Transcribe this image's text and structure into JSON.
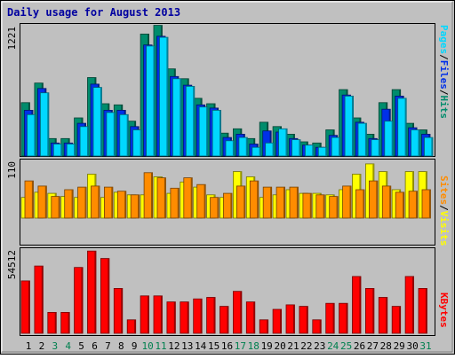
{
  "chart_data": {
    "type": "bar",
    "title": "Daily usage for August 2013",
    "colors": {
      "hits": "#00d8ff",
      "files": "#0030e8",
      "pages": "#008c6c",
      "visits": "#ffff00",
      "sites": "#ff8c00",
      "kbytes": "#ff0000",
      "weekend_day_label": "#00804f",
      "weekday_label": "#000000",
      "title": "#0000a0"
    },
    "x": {
      "labels": [
        "1",
        "2",
        "3",
        "4",
        "5",
        "6",
        "7",
        "8",
        "9",
        "10",
        "11",
        "12",
        "13",
        "14",
        "15",
        "16",
        "17",
        "18",
        "19",
        "20",
        "21",
        "22",
        "23",
        "24",
        "25",
        "26",
        "27",
        "28",
        "29",
        "30",
        "31"
      ],
      "weekend": [
        false,
        false,
        true,
        true,
        false,
        false,
        false,
        false,
        false,
        true,
        true,
        false,
        false,
        false,
        false,
        false,
        true,
        true,
        false,
        false,
        false,
        false,
        false,
        true,
        true,
        false,
        false,
        false,
        false,
        false,
        true
      ]
    },
    "panels": [
      {
        "id": "usage",
        "ymax": 1221,
        "ytick_label": "1221",
        "legend": [
          {
            "key": "pages",
            "label": "Pages"
          },
          {
            "key": "files",
            "label": "Files"
          },
          {
            "key": "hits",
            "label": "Hits"
          }
        ],
        "series": [
          {
            "name": "Pages",
            "key": "pages",
            "values": [
              490,
              670,
              160,
              160,
              350,
              720,
              480,
              470,
              320,
              1120,
              1200,
              800,
              710,
              530,
              480,
              210,
              250,
              160,
              310,
              270,
              200,
              130,
              120,
              240,
              610,
              350,
              200,
              490,
              610,
              300,
              240
            ]
          },
          {
            "name": "Files",
            "key": "files",
            "values": [
              420,
              620,
              120,
              120,
              300,
              660,
              420,
              420,
              270,
              1020,
              1100,
              730,
              650,
              470,
              440,
              170,
              200,
              110,
              230,
              220,
              160,
              100,
              80,
              190,
              560,
              310,
              160,
              430,
              550,
              260,
              200
            ]
          },
          {
            "name": "Hits",
            "key": "hits",
            "values": [
              380,
              580,
              110,
              110,
              270,
              630,
              400,
              380,
              240,
              1010,
              1090,
              710,
              640,
              450,
              420,
              140,
              170,
              80,
              120,
              250,
              150,
              100,
              80,
              170,
              550,
              300,
              150,
              320,
              530,
              240,
              170
            ]
          }
        ]
      },
      {
        "id": "visits",
        "ymax": 110,
        "ytick_label": "110",
        "legend": [
          {
            "key": "sites",
            "label": "Sites"
          },
          {
            "key": "visits",
            "label": "Visits"
          }
        ],
        "series": [
          {
            "name": "Visits",
            "key": "visits",
            "values": [
              40,
              50,
              48,
              42,
              40,
              85,
              40,
              50,
              45,
              45,
              80,
              48,
              70,
              60,
              45,
              40,
              90,
              80,
              40,
              45,
              55,
              48,
              48,
              45,
              55,
              85,
              105,
              90,
              55,
              90,
              90
            ]
          },
          {
            "name": "Sites",
            "key": "sites",
            "values": [
              72,
              62,
              42,
              55,
              60,
              62,
              60,
              52,
              45,
              88,
              78,
              58,
              78,
              65,
              40,
              48,
              62,
              72,
              60,
              60,
              60,
              48,
              45,
              42,
              62,
              55,
              72,
              62,
              50,
              52,
              55
            ]
          }
        ]
      },
      {
        "id": "kbytes",
        "ymax": 54512,
        "ytick_label": "54512",
        "legend": [
          {
            "key": "kbytes",
            "label": "KBytes"
          }
        ],
        "series": [
          {
            "name": "KBytes",
            "key": "kbytes",
            "values": [
              35000,
              45000,
              14000,
              14000,
              44000,
              55000,
              50000,
              30000,
              9000,
              25000,
              25000,
              21000,
              21000,
              23000,
              24000,
              18000,
              28000,
              21000,
              9000,
              16000,
              19000,
              18000,
              9000,
              20000,
              20000,
              38000,
              30000,
              24000,
              18000,
              38000,
              30000
            ]
          }
        ]
      }
    ]
  }
}
